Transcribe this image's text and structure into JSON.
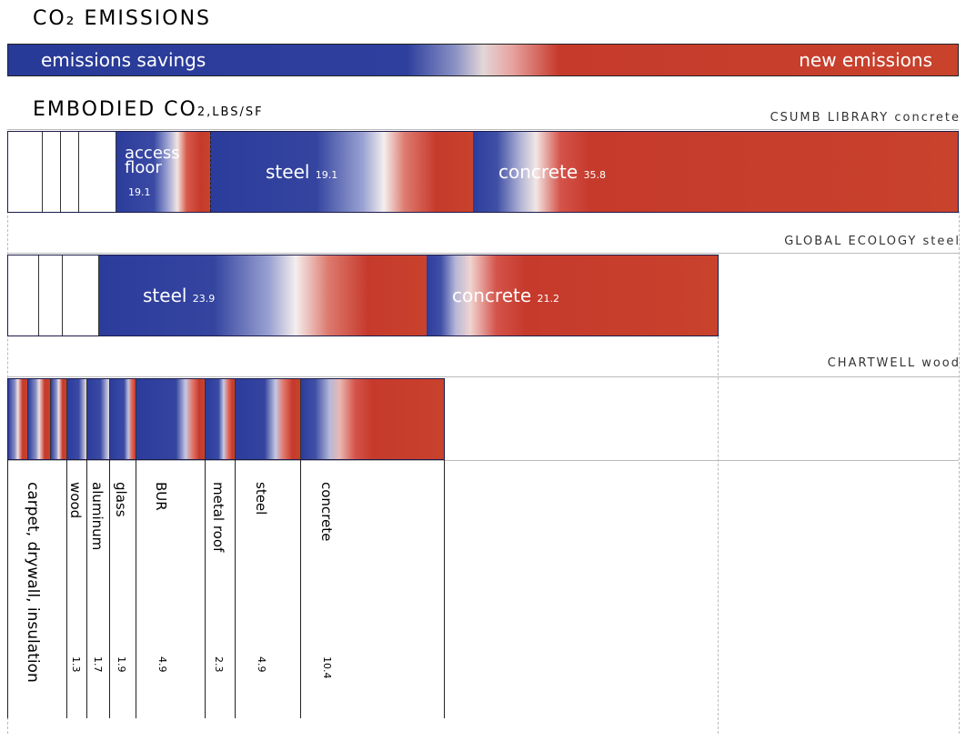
{
  "header": {
    "title": "CO₂ EMISSIONS",
    "scale_left": "emissions savings",
    "scale_right": "new emissions",
    "embodied_title": "EMBODIED CO",
    "embodied_unit": "2,LBS/SF"
  },
  "buildings": [
    {
      "label": "CSUMB LIBRARY  concrete"
    },
    {
      "label": "GLOBAL ECOLOGY  steel"
    },
    {
      "label": "CHARTWELL  wood"
    }
  ],
  "csumb": {
    "access_floor": {
      "name": "access floor",
      "value": "19.1"
    },
    "steel": {
      "name": "steel",
      "value": "19.1"
    },
    "concrete": {
      "name": "concrete",
      "value": "35.8"
    }
  },
  "global_ecology": {
    "steel": {
      "name": "steel",
      "value": "23.9"
    },
    "concrete": {
      "name": "concrete",
      "value": "21.2"
    }
  },
  "chartwell": {
    "materials": [
      {
        "name": "carpet, drywall, insulation",
        "value": ""
      },
      {
        "name": "wood",
        "value": "1.3"
      },
      {
        "name": "aluminum",
        "value": "1.7"
      },
      {
        "name": "glass",
        "value": "1.9"
      },
      {
        "name": "BUR",
        "value": "4.9"
      },
      {
        "name": "metal roof",
        "value": "2.3"
      },
      {
        "name": "steel",
        "value": "4.9"
      },
      {
        "name": "concrete",
        "value": "10.4"
      }
    ]
  },
  "colors": {
    "savings": "#2a3a9a",
    "neutral": "#f3f3f3",
    "emissions": "#c8402a"
  }
}
